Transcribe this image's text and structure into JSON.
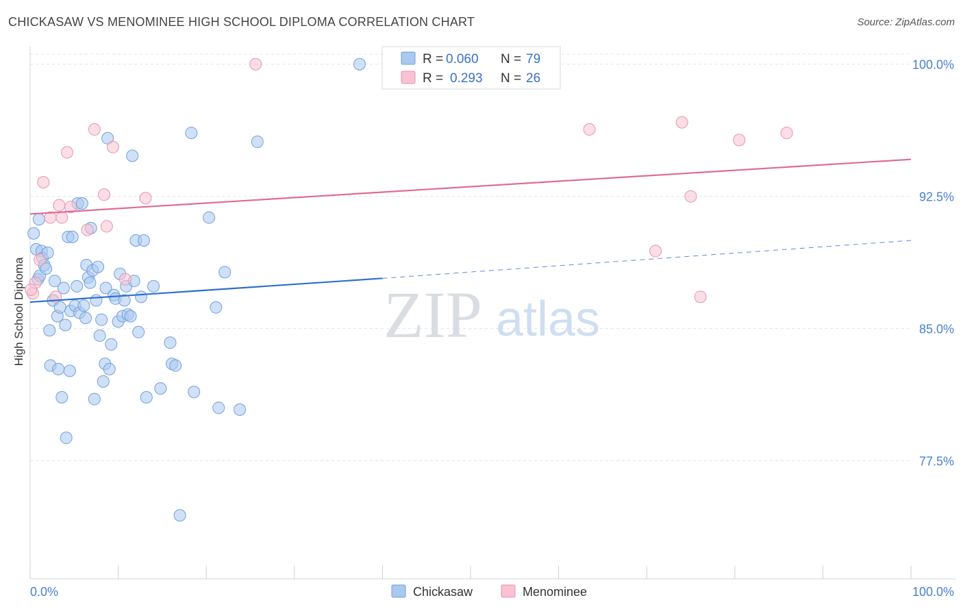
{
  "title": "CHICKASAW VS MENOMINEE HIGH SCHOOL DIPLOMA CORRELATION CHART",
  "source": "Source: ZipAtlas.com",
  "watermark": {
    "zip": "ZIP",
    "atlas": "atlas"
  },
  "colors": {
    "blue_fill": "#aac8f0",
    "blue_stroke": "#6f9fdc",
    "blue_line": "#2d6fcb",
    "pink_fill": "#f8c2d2",
    "pink_stroke": "#e893ae",
    "pink_line": "#e06a95",
    "grid": "#dde3ea",
    "tick_label": "#4a7fd0"
  },
  "legend": {
    "rows": [
      {
        "r_label": "R =",
        "r_value": "0.060",
        "n_label": "N =",
        "n_value": "79"
      },
      {
        "r_label": "R =",
        "r_value": "0.293",
        "n_label": "N =",
        "n_value": "26"
      }
    ]
  },
  "bottom_legend": [
    "Chickasaw",
    "Menominee"
  ],
  "chart_data": {
    "type": "scatter",
    "title": "CHICKASAW VS MENOMINEE HIGH SCHOOL DIPLOMA CORRELATION CHART",
    "xlabel": "",
    "ylabel": "High School Diploma",
    "xlim": [
      0,
      100
    ],
    "ylim": [
      70.8,
      101.0
    ],
    "x_ticks": [
      "0.0%",
      "100.0%"
    ],
    "y_ticks": [
      {
        "value": 100.0,
        "label": "100.0%"
      },
      {
        "value": 92.5,
        "label": "92.5%"
      },
      {
        "value": 85.0,
        "label": "85.0%"
      },
      {
        "value": 77.5,
        "label": "77.5%"
      }
    ],
    "grid": true,
    "legend_position": "top-center",
    "series": [
      {
        "name": "Chickasaw",
        "trend": {
          "x0": 0,
          "y0": 86.5,
          "x1": 40,
          "y1": 87.85,
          "dash_x1": 100,
          "dash_y1": 90.0
        },
        "points": [
          [
            0.4,
            90.4
          ],
          [
            0.7,
            89.5
          ],
          [
            0.9,
            87.8
          ],
          [
            1.0,
            91.2
          ],
          [
            1.1,
            88.0
          ],
          [
            1.3,
            89.4
          ],
          [
            1.4,
            89.0
          ],
          [
            1.6,
            88.6
          ],
          [
            1.8,
            88.4
          ],
          [
            2.0,
            89.3
          ],
          [
            2.2,
            84.9
          ],
          [
            2.3,
            82.9
          ],
          [
            2.6,
            86.6
          ],
          [
            2.8,
            87.7
          ],
          [
            3.1,
            85.7
          ],
          [
            3.2,
            82.7
          ],
          [
            3.4,
            86.2
          ],
          [
            3.6,
            81.1
          ],
          [
            3.8,
            87.3
          ],
          [
            4.0,
            85.2
          ],
          [
            4.1,
            78.8
          ],
          [
            4.3,
            90.2
          ],
          [
            4.5,
            82.6
          ],
          [
            4.6,
            86.0
          ],
          [
            4.8,
            90.2
          ],
          [
            5.1,
            86.3
          ],
          [
            5.3,
            87.4
          ],
          [
            5.4,
            92.1
          ],
          [
            5.6,
            85.9
          ],
          [
            5.9,
            92.1
          ],
          [
            6.1,
            86.3
          ],
          [
            6.3,
            85.6
          ],
          [
            6.4,
            88.6
          ],
          [
            6.6,
            87.9
          ],
          [
            6.8,
            87.6
          ],
          [
            6.9,
            90.7
          ],
          [
            7.1,
            88.3
          ],
          [
            7.3,
            81.0
          ],
          [
            7.5,
            86.6
          ],
          [
            7.7,
            88.5
          ],
          [
            7.9,
            84.6
          ],
          [
            8.1,
            85.5
          ],
          [
            8.3,
            82.0
          ],
          [
            8.5,
            83.0
          ],
          [
            8.6,
            87.3
          ],
          [
            8.8,
            95.8
          ],
          [
            9.0,
            82.7
          ],
          [
            9.2,
            84.1
          ],
          [
            9.5,
            86.9
          ],
          [
            9.7,
            86.7
          ],
          [
            10.0,
            85.4
          ],
          [
            10.2,
            88.1
          ],
          [
            10.5,
            85.7
          ],
          [
            10.7,
            86.6
          ],
          [
            10.9,
            87.4
          ],
          [
            11.1,
            85.8
          ],
          [
            11.4,
            85.7
          ],
          [
            11.6,
            94.8
          ],
          [
            11.8,
            87.7
          ],
          [
            12.0,
            90.0
          ],
          [
            12.3,
            84.8
          ],
          [
            12.6,
            86.8
          ],
          [
            12.9,
            90.0
          ],
          [
            13.2,
            81.1
          ],
          [
            14.0,
            87.4
          ],
          [
            14.8,
            81.6
          ],
          [
            15.9,
            84.2
          ],
          [
            16.1,
            83.0
          ],
          [
            16.5,
            82.9
          ],
          [
            17.0,
            74.4
          ],
          [
            18.3,
            96.1
          ],
          [
            18.6,
            81.4
          ],
          [
            20.3,
            91.3
          ],
          [
            21.1,
            86.2
          ],
          [
            21.4,
            80.5
          ],
          [
            22.1,
            88.2
          ],
          [
            23.8,
            80.4
          ],
          [
            25.8,
            95.6
          ],
          [
            37.4,
            100.0
          ]
        ]
      },
      {
        "name": "Menominee",
        "trend": {
          "x0": 0,
          "y0": 91.5,
          "x1": 100,
          "y1": 94.6
        },
        "points": [
          [
            0.3,
            87.0
          ],
          [
            0.6,
            87.6
          ],
          [
            1.1,
            88.9
          ],
          [
            1.5,
            93.3
          ],
          [
            2.3,
            91.3
          ],
          [
            2.9,
            86.8
          ],
          [
            3.3,
            92.0
          ],
          [
            3.6,
            91.3
          ],
          [
            4.2,
            95.0
          ],
          [
            4.6,
            91.9
          ],
          [
            6.5,
            90.6
          ],
          [
            7.3,
            96.3
          ],
          [
            8.4,
            92.6
          ],
          [
            8.7,
            90.8
          ],
          [
            9.4,
            95.3
          ],
          [
            10.8,
            87.8
          ],
          [
            13.1,
            92.4
          ],
          [
            25.6,
            100.0
          ],
          [
            63.5,
            96.3
          ],
          [
            71.0,
            89.4
          ],
          [
            74.0,
            96.7
          ],
          [
            75.0,
            92.5
          ],
          [
            76.1,
            86.8
          ],
          [
            80.5,
            95.7
          ],
          [
            85.9,
            96.1
          ],
          [
            0.1,
            87.2
          ]
        ]
      }
    ]
  }
}
